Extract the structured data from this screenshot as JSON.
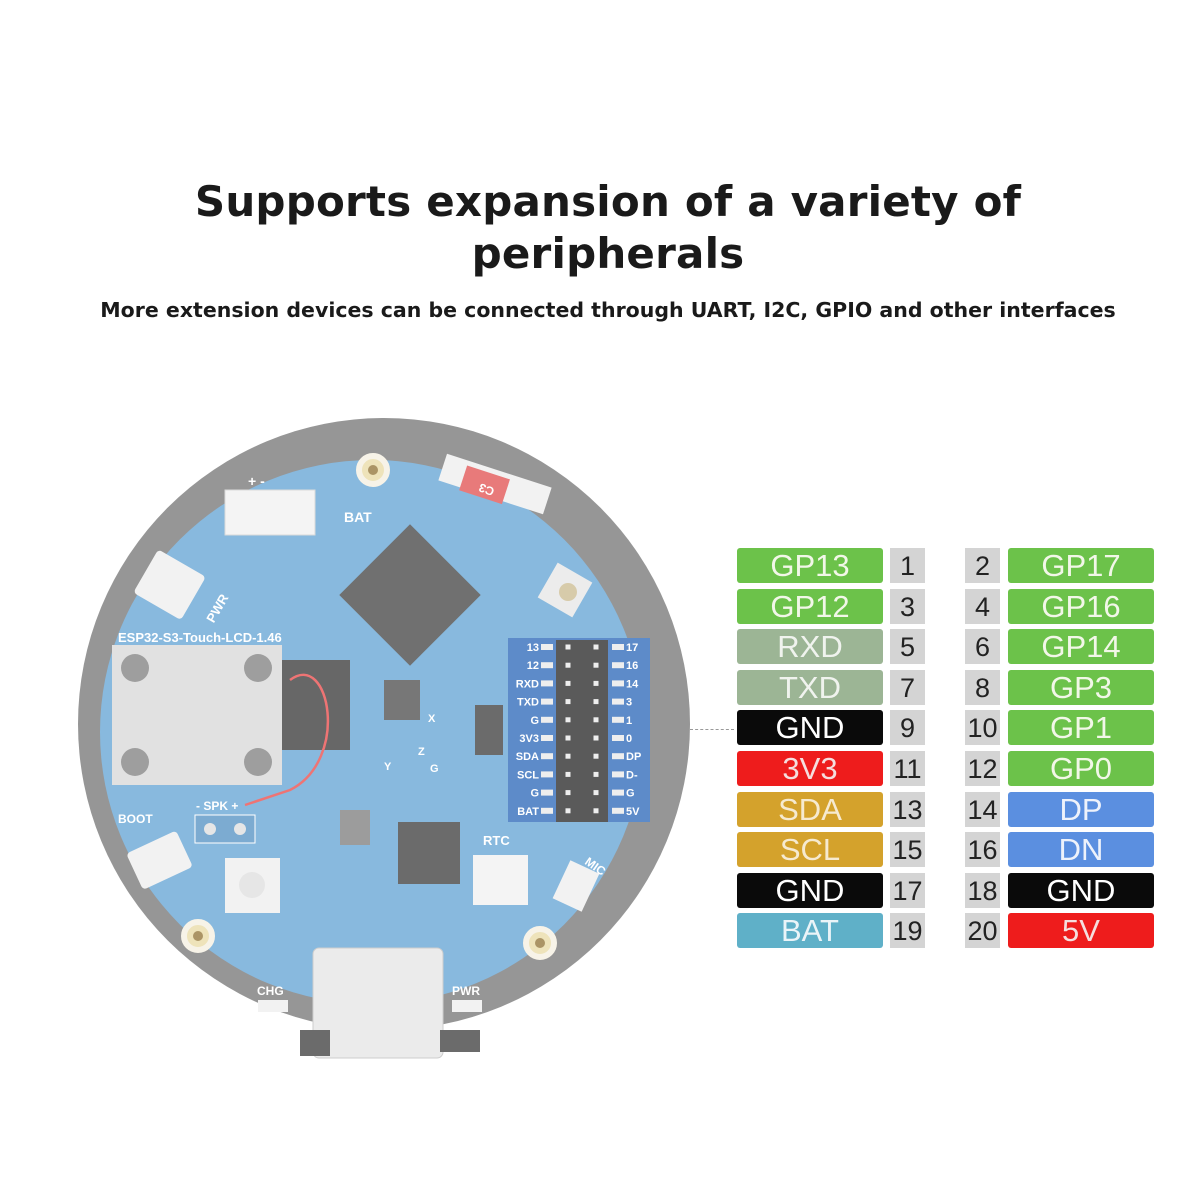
{
  "title_line1": "Supports expansion of a variety of",
  "title_line2": "peripherals",
  "subtitle": "More extension devices can be connected through UART, I2C, GPIO and other interfaces",
  "board": {
    "model": "ESP32-S3-Touch-LCD-1.46",
    "labels": {
      "bat": "BAT",
      "pwr_button": "PWR",
      "boot": "BOOT",
      "spk": "- SPK +",
      "rtc": "RTC",
      "mic": "MIC",
      "chg": "CHG",
      "pwr_led": "PWR",
      "bat_plus_minus": "+ -",
      "axis_x": "X",
      "axis_y": "Y",
      "axis_z": "Z",
      "axis_g": "G",
      "chip_c3": "C3"
    },
    "header_left": [
      "13",
      "12",
      "RXD",
      "TXD",
      "G",
      "3V3",
      "SDA",
      "SCL",
      "G",
      "BAT"
    ],
    "header_right": [
      "17",
      "16",
      "14",
      "3",
      "1",
      "0",
      "DP",
      "D-",
      "G",
      "5V"
    ],
    "colors": {
      "pcb": "#5b9fd2",
      "ring": "#6e6e6e",
      "header_silk": "#1f5fb5"
    }
  },
  "colors": {
    "gpio": "#6cc24a",
    "uart": "#9cb595",
    "gnd": "#0a0a0a",
    "power": "#ee1c1c",
    "i2c": "#d4a22c",
    "usb": "#5b8fe0",
    "bat": "#5fb0c8"
  },
  "pins": [
    {
      "left": {
        "label": "GP13",
        "num": "1",
        "type": "gpio"
      },
      "right": {
        "num": "2",
        "label": "GP17",
        "type": "gpio"
      }
    },
    {
      "left": {
        "label": "GP12",
        "num": "3",
        "type": "gpio"
      },
      "right": {
        "num": "4",
        "label": "GP16",
        "type": "gpio"
      }
    },
    {
      "left": {
        "label": "RXD",
        "num": "5",
        "type": "uart"
      },
      "right": {
        "num": "6",
        "label": "GP14",
        "type": "gpio"
      }
    },
    {
      "left": {
        "label": "TXD",
        "num": "7",
        "type": "uart"
      },
      "right": {
        "num": "8",
        "label": "GP3",
        "type": "gpio"
      }
    },
    {
      "left": {
        "label": "GND",
        "num": "9",
        "type": "gnd"
      },
      "right": {
        "num": "10",
        "label": "GP1",
        "type": "gpio"
      }
    },
    {
      "left": {
        "label": "3V3",
        "num": "11",
        "type": "power"
      },
      "right": {
        "num": "12",
        "label": "GP0",
        "type": "gpio"
      }
    },
    {
      "left": {
        "label": "SDA",
        "num": "13",
        "type": "i2c"
      },
      "right": {
        "num": "14",
        "label": "DP",
        "type": "usb"
      }
    },
    {
      "left": {
        "label": "SCL",
        "num": "15",
        "type": "i2c"
      },
      "right": {
        "num": "16",
        "label": "DN",
        "type": "usb"
      }
    },
    {
      "left": {
        "label": "GND",
        "num": "17",
        "type": "gnd"
      },
      "right": {
        "num": "18",
        "label": "GND",
        "type": "gnd"
      }
    },
    {
      "left": {
        "label": "BAT",
        "num": "19",
        "type": "bat"
      },
      "right": {
        "num": "20",
        "label": "5V",
        "type": "power"
      }
    }
  ]
}
